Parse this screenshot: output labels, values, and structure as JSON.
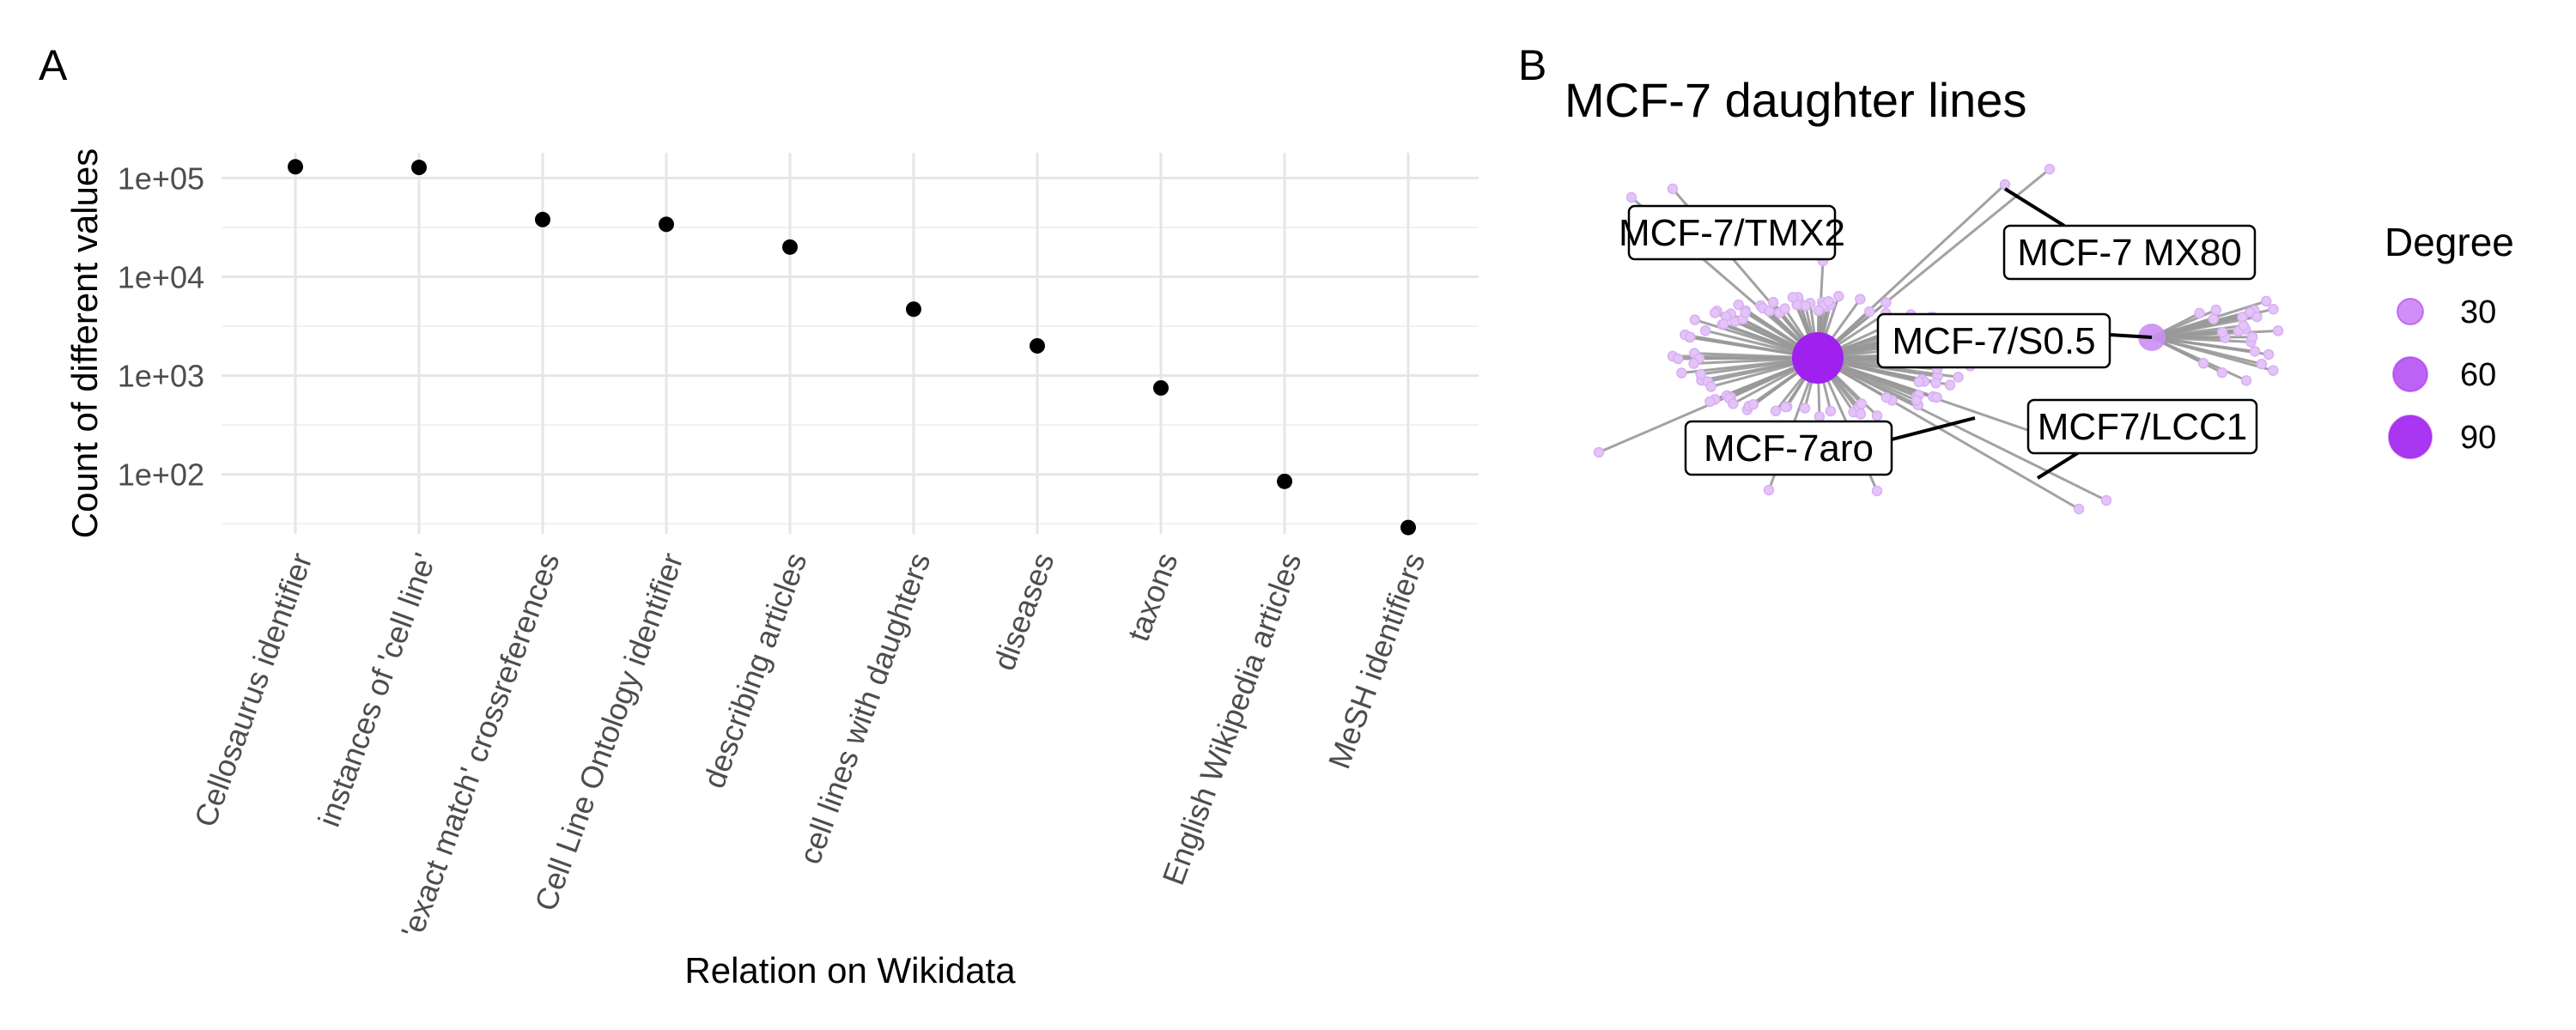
{
  "panel_a": {
    "tag": "A",
    "chart_data": {
      "type": "scatter",
      "title": "",
      "xlabel": "Relation on Wikidata",
      "ylabel": "Count of different values",
      "y_scale": "log10",
      "yticks": [
        "1e+02",
        "1e+03",
        "1e+04",
        "1e+05"
      ],
      "ylim": [
        25,
        180000
      ],
      "grid": true,
      "point_color": "#000000",
      "categories": [
        "Cellosaurus identifier",
        "instances of 'cell line'",
        "'exact match' crossreferences",
        "Cell Line Ontology identifier",
        "describing articles",
        "cell lines with daughters",
        "diseases",
        "taxons",
        "English Wikipedia articles",
        "MeSH identifiers"
      ],
      "values": [
        130000,
        128000,
        38000,
        34000,
        20000,
        4700,
        2000,
        750,
        85,
        29
      ]
    }
  },
  "panel_b": {
    "tag": "B",
    "title": "MCF-7 daughter lines",
    "node_color": "#a020f0",
    "edge_color": "#999999",
    "labels": [
      "MCF-7/TMX2",
      "MCF-7 MX80",
      "MCF-7/S0.5",
      "MCF-7aro",
      "MCF7/LCC1"
    ],
    "legend": {
      "title": "Degree",
      "items": [
        {
          "label": "30",
          "value": 30
        },
        {
          "label": "60",
          "value": 60
        },
        {
          "label": "90",
          "value": 90
        }
      ]
    }
  }
}
